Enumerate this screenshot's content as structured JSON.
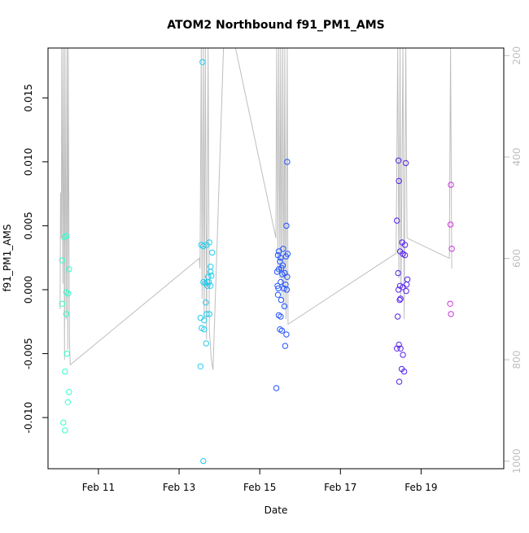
{
  "chart_data": {
    "type": "scatter",
    "title": "ATOM2 Northbound f91_PM1_AMS",
    "xlabel": "Date",
    "ylabel": "f91_PM1_AMS",
    "x_unit": "days of February",
    "xlim": [
      9.75,
      21.05
    ],
    "ylim": [
      -0.014,
      0.0189
    ],
    "y2lim": [
      1015,
      185
    ],
    "x_ticks": [
      {
        "value": 11,
        "label": "Feb 11"
      },
      {
        "value": 13,
        "label": "Feb 13"
      },
      {
        "value": 15,
        "label": "Feb 15"
      },
      {
        "value": 17,
        "label": "Feb 17"
      },
      {
        "value": 19,
        "label": "Feb 19"
      }
    ],
    "y_ticks": [
      {
        "value": -0.01,
        "label": "-0.010"
      },
      {
        "value": -0.005,
        "label": "-0.005"
      },
      {
        "value": 0.0,
        "label": "0.000"
      },
      {
        "value": 0.005,
        "label": "0.005"
      },
      {
        "value": 0.01,
        "label": "0.010"
      },
      {
        "value": 0.015,
        "label": "0.015"
      }
    ],
    "y2_ticks": [
      {
        "value": 200,
        "label": "200"
      },
      {
        "value": 400,
        "label": "400"
      },
      {
        "value": 600,
        "label": "600"
      },
      {
        "value": 800,
        "label": "800"
      },
      {
        "value": 1000,
        "label": "1000"
      }
    ],
    "grid": false,
    "marker": "open-circle",
    "points": [
      {
        "x": 10.15,
        "y": 0.0041,
        "color": "#33ffcc"
      },
      {
        "x": 10.2,
        "y": 0.0042,
        "color": "#33ffcc"
      },
      {
        "x": 10.1,
        "y": 0.0023,
        "color": "#33ffcc"
      },
      {
        "x": 10.27,
        "y": 0.0016,
        "color": "#33ffcc"
      },
      {
        "x": 10.1,
        "y": -0.0011,
        "color": "#33ffcc"
      },
      {
        "x": 10.2,
        "y": -0.0002,
        "color": "#33ffcc"
      },
      {
        "x": 10.25,
        "y": -0.0003,
        "color": "#33ffcc"
      },
      {
        "x": 10.2,
        "y": -0.0019,
        "color": "#33ffcc"
      },
      {
        "x": 10.22,
        "y": -0.005,
        "color": "#33ffcc"
      },
      {
        "x": 10.17,
        "y": -0.0064,
        "color": "#33ffcc"
      },
      {
        "x": 10.27,
        "y": -0.008,
        "color": "#33ffcc"
      },
      {
        "x": 10.24,
        "y": -0.0088,
        "color": "#33ffcc"
      },
      {
        "x": 10.13,
        "y": -0.0104,
        "color": "#33ffcc"
      },
      {
        "x": 10.17,
        "y": -0.011,
        "color": "#33ffcc"
      },
      {
        "x": 13.58,
        "y": 0.0178,
        "color": "#22ccee"
      },
      {
        "x": 13.55,
        "y": 0.0035,
        "color": "#22ccee"
      },
      {
        "x": 13.6,
        "y": 0.0034,
        "color": "#22ccee"
      },
      {
        "x": 13.68,
        "y": 0.0035,
        "color": "#22ccee"
      },
      {
        "x": 13.75,
        "y": 0.0037,
        "color": "#22ccee"
      },
      {
        "x": 13.82,
        "y": 0.0029,
        "color": "#22ccee"
      },
      {
        "x": 13.78,
        "y": 0.0018,
        "color": "#22ccee"
      },
      {
        "x": 13.78,
        "y": 0.0014,
        "color": "#22ccee"
      },
      {
        "x": 13.72,
        "y": 0.001,
        "color": "#22ccee"
      },
      {
        "x": 13.8,
        "y": 0.0011,
        "color": "#22ccee"
      },
      {
        "x": 13.6,
        "y": 0.0006,
        "color": "#22ccee"
      },
      {
        "x": 13.65,
        "y": 0.0005,
        "color": "#22ccee"
      },
      {
        "x": 13.7,
        "y": 0.0006,
        "color": "#22ccee"
      },
      {
        "x": 13.74,
        "y": 0.0006,
        "color": "#22ccee"
      },
      {
        "x": 13.7,
        "y": 0.0003,
        "color": "#22ccee"
      },
      {
        "x": 13.78,
        "y": 0.0003,
        "color": "#22ccee"
      },
      {
        "x": 13.66,
        "y": -0.001,
        "color": "#22ccee"
      },
      {
        "x": 13.68,
        "y": -0.0019,
        "color": "#22ccee"
      },
      {
        "x": 13.75,
        "y": -0.0019,
        "color": "#22ccee"
      },
      {
        "x": 13.53,
        "y": -0.0022,
        "color": "#22ccee"
      },
      {
        "x": 13.62,
        "y": -0.0024,
        "color": "#22ccee"
      },
      {
        "x": 13.56,
        "y": -0.003,
        "color": "#22ccee"
      },
      {
        "x": 13.62,
        "y": -0.0031,
        "color": "#22ccee"
      },
      {
        "x": 13.67,
        "y": -0.0042,
        "color": "#22ccee"
      },
      {
        "x": 13.53,
        "y": -0.006,
        "color": "#22ccee"
      },
      {
        "x": 13.6,
        "y": -0.0134,
        "color": "#22ccee"
      },
      {
        "x": 15.68,
        "y": 0.01,
        "color": "#2255ff"
      },
      {
        "x": 15.66,
        "y": 0.005,
        "color": "#2255ff"
      },
      {
        "x": 15.47,
        "y": 0.003,
        "color": "#2255ff"
      },
      {
        "x": 15.58,
        "y": 0.0032,
        "color": "#2255ff"
      },
      {
        "x": 15.45,
        "y": 0.0027,
        "color": "#2255ff"
      },
      {
        "x": 15.52,
        "y": 0.0025,
        "color": "#2255ff"
      },
      {
        "x": 15.65,
        "y": 0.0026,
        "color": "#2255ff"
      },
      {
        "x": 15.69,
        "y": 0.0028,
        "color": "#2255ff"
      },
      {
        "x": 15.5,
        "y": 0.0022,
        "color": "#2255ff"
      },
      {
        "x": 15.57,
        "y": 0.0019,
        "color": "#2255ff"
      },
      {
        "x": 15.47,
        "y": 0.0016,
        "color": "#2255ff"
      },
      {
        "x": 15.54,
        "y": 0.0017,
        "color": "#2255ff"
      },
      {
        "x": 15.43,
        "y": 0.0014,
        "color": "#2255ff"
      },
      {
        "x": 15.56,
        "y": 0.0012,
        "color": "#2255ff"
      },
      {
        "x": 15.62,
        "y": 0.0013,
        "color": "#2255ff"
      },
      {
        "x": 15.68,
        "y": 0.001,
        "color": "#2255ff"
      },
      {
        "x": 15.52,
        "y": 0.0006,
        "color": "#2255ff"
      },
      {
        "x": 15.64,
        "y": 0.0004,
        "color": "#2255ff"
      },
      {
        "x": 15.44,
        "y": 0.0003,
        "color": "#2255ff"
      },
      {
        "x": 15.46,
        "y": 0.0001,
        "color": "#2255ff"
      },
      {
        "x": 15.6,
        "y": 0.0001,
        "color": "#2255ff"
      },
      {
        "x": 15.67,
        "y": 0.0,
        "color": "#2255ff"
      },
      {
        "x": 15.45,
        "y": -0.0004,
        "color": "#2255ff"
      },
      {
        "x": 15.53,
        "y": -0.0008,
        "color": "#2255ff"
      },
      {
        "x": 15.61,
        "y": -0.0013,
        "color": "#2255ff"
      },
      {
        "x": 15.47,
        "y": -0.002,
        "color": "#2255ff"
      },
      {
        "x": 15.52,
        "y": -0.0021,
        "color": "#2255ff"
      },
      {
        "x": 15.5,
        "y": -0.0031,
        "color": "#2255ff"
      },
      {
        "x": 15.55,
        "y": -0.0032,
        "color": "#2255ff"
      },
      {
        "x": 15.66,
        "y": -0.0035,
        "color": "#2255ff"
      },
      {
        "x": 15.63,
        "y": -0.0044,
        "color": "#2255ff"
      },
      {
        "x": 15.41,
        "y": -0.0077,
        "color": "#2255ff"
      },
      {
        "x": 18.44,
        "y": 0.0101,
        "color": "#5522ee"
      },
      {
        "x": 18.62,
        "y": 0.0099,
        "color": "#5522ee"
      },
      {
        "x": 18.45,
        "y": 0.0085,
        "color": "#5522ee"
      },
      {
        "x": 18.4,
        "y": 0.0054,
        "color": "#5522ee"
      },
      {
        "x": 18.53,
        "y": 0.0037,
        "color": "#5522ee"
      },
      {
        "x": 18.6,
        "y": 0.0035,
        "color": "#5522ee"
      },
      {
        "x": 18.48,
        "y": 0.003,
        "color": "#5522ee"
      },
      {
        "x": 18.55,
        "y": 0.0028,
        "color": "#5522ee"
      },
      {
        "x": 18.6,
        "y": 0.0027,
        "color": "#5522ee"
      },
      {
        "x": 18.43,
        "y": 0.0013,
        "color": "#5522ee"
      },
      {
        "x": 18.66,
        "y": 0.0008,
        "color": "#5522ee"
      },
      {
        "x": 18.64,
        "y": 0.0004,
        "color": "#5522ee"
      },
      {
        "x": 18.48,
        "y": 0.0003,
        "color": "#5522ee"
      },
      {
        "x": 18.55,
        "y": 0.0002,
        "color": "#5522ee"
      },
      {
        "x": 18.44,
        "y": 0.0,
        "color": "#5522ee"
      },
      {
        "x": 18.63,
        "y": -0.0001,
        "color": "#5522ee"
      },
      {
        "x": 18.49,
        "y": -0.0007,
        "color": "#5522ee"
      },
      {
        "x": 18.47,
        "y": -0.0008,
        "color": "#5522ee"
      },
      {
        "x": 18.42,
        "y": -0.0021,
        "color": "#5522ee"
      },
      {
        "x": 18.45,
        "y": -0.0043,
        "color": "#5522ee"
      },
      {
        "x": 18.4,
        "y": -0.0046,
        "color": "#5522ee"
      },
      {
        "x": 18.49,
        "y": -0.0046,
        "color": "#5522ee"
      },
      {
        "x": 18.55,
        "y": -0.0051,
        "color": "#5522ee"
      },
      {
        "x": 18.52,
        "y": -0.0062,
        "color": "#5522ee"
      },
      {
        "x": 18.58,
        "y": -0.0064,
        "color": "#5522ee"
      },
      {
        "x": 18.46,
        "y": -0.0072,
        "color": "#5522ee"
      },
      {
        "x": 19.74,
        "y": 0.0082,
        "color": "#cc33dd"
      },
      {
        "x": 19.73,
        "y": 0.0051,
        "color": "#cc33dd"
      },
      {
        "x": 19.76,
        "y": 0.0032,
        "color": "#cc33dd"
      },
      {
        "x": 19.72,
        "y": -0.0011,
        "color": "#cc33dd"
      },
      {
        "x": 19.74,
        "y": -0.0019,
        "color": "#cc33dd"
      }
    ],
    "secondary_line": {
      "axis": "right",
      "color": "#bebebe",
      "x": [
        10.05,
        10.06,
        10.08,
        10.09,
        10.12,
        10.13,
        10.16,
        10.17,
        10.2,
        10.22,
        10.24,
        10.25,
        10.28,
        10.3,
        13.5,
        13.52,
        13.55,
        13.57,
        13.6,
        13.62,
        13.65,
        13.68,
        13.72,
        13.75,
        13.8,
        13.84,
        14.1,
        14.4,
        15.4,
        15.42,
        15.45,
        15.47,
        15.5,
        15.52,
        15.55,
        15.57,
        15.6,
        15.62,
        15.65,
        15.68,
        15.7,
        18.38,
        18.42,
        18.45,
        18.48,
        18.5,
        18.55,
        18.58,
        18.62,
        18.65,
        19.7,
        19.73,
        19.76
      ],
      "y": [
        700,
        470,
        560,
        150,
        650,
        120,
        800,
        140,
        720,
        130,
        780,
        150,
        760,
        810,
        600,
        620,
        150,
        680,
        120,
        720,
        140,
        760,
        160,
        740,
        800,
        820,
        150,
        160,
        560,
        130,
        620,
        110,
        640,
        120,
        680,
        120,
        700,
        130,
        720,
        140,
        730,
        590,
        120,
        640,
        110,
        680,
        140,
        720,
        150,
        560,
        600,
        180,
        620
      ]
    }
  }
}
